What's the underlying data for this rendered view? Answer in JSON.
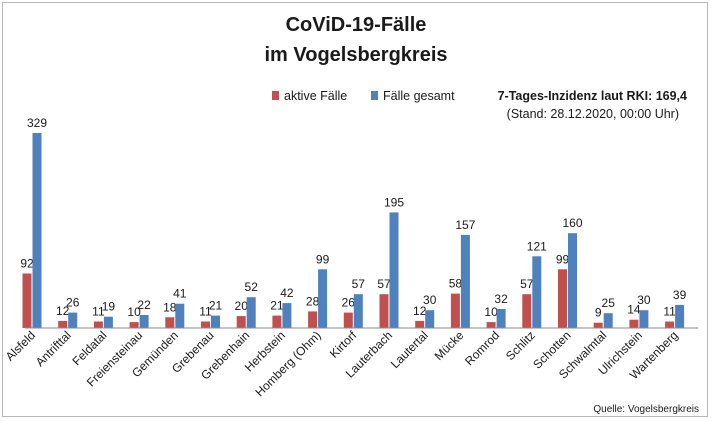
{
  "chart_data": {
    "type": "bar",
    "title": "CoViD-19-Fälle",
    "subtitle": "im Vogelsbergkreis",
    "info_line1": "7-Tages-Inzidenz laut RKI: 169,4",
    "info_line2": "(Stand: 28.12.2020, 00:00 Uhr)",
    "source": "Quelle: Vogelsbergkreis",
    "legend_position": "top-center",
    "grid": false,
    "ylim": [
      0,
      340
    ],
    "categories": [
      "Alsfeld",
      "Antrifttal",
      "Feldatal",
      "Freiensteinau",
      "Gemünden",
      "Grebenau",
      "Grebenhain",
      "Herbstein",
      "Homberg (Ohm)",
      "Kirtorf",
      "Lauterbach",
      "Lautertal",
      "Mücke",
      "Romrod",
      "Schlitz",
      "Schotten",
      "Schwalmtal",
      "Ulrichstein",
      "Wartenberg"
    ],
    "series": [
      {
        "name": "aktive Fälle",
        "color": "#c0504d",
        "values": [
          92,
          12,
          11,
          10,
          18,
          11,
          20,
          21,
          28,
          26,
          57,
          12,
          58,
          10,
          57,
          99,
          9,
          14,
          11
        ]
      },
      {
        "name": "Fälle gesamt",
        "color": "#4f81bd",
        "values": [
          329,
          26,
          19,
          22,
          41,
          21,
          52,
          42,
          99,
          57,
          195,
          30,
          157,
          32,
          121,
          160,
          25,
          30,
          39
        ]
      }
    ]
  }
}
